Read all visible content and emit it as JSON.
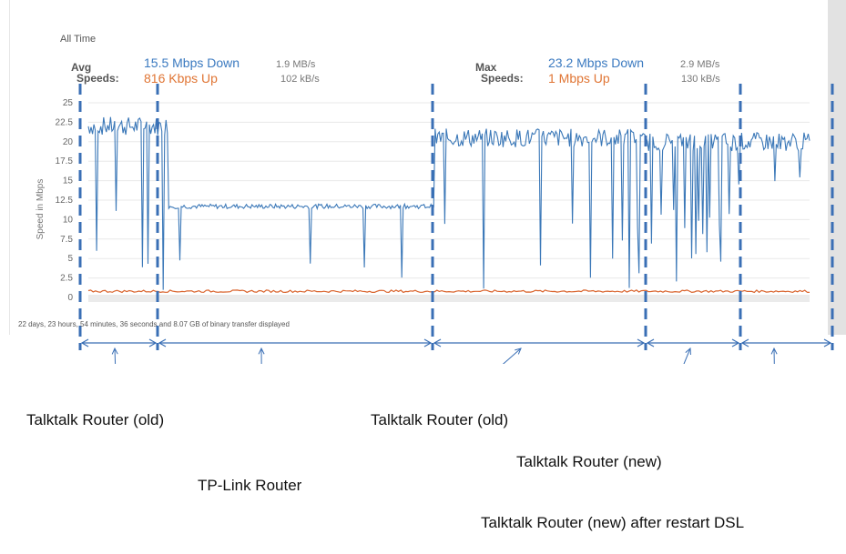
{
  "header": {
    "period": "All Time",
    "avg": {
      "label_line1": "Avg",
      "label_line2": "Speeds:",
      "down": "15.5 Mbps Down",
      "up": "816 Kbps Up",
      "down_bytes": "1.9 MB/s",
      "up_bytes": "102 kB/s"
    },
    "max": {
      "label_line1": "Max",
      "label_line2": "Speeds:",
      "down": "23.2 Mbps Down",
      "up": "1 Mbps Up",
      "down_bytes": "2.9 MB/s",
      "up_bytes": "130 kB/s"
    }
  },
  "footer": "22 days, 23 hours, 54 minutes, 36 seconds and 8.07 GB of binary transfer displayed",
  "annotations": [
    {
      "label": "Talktalk Router (old)",
      "segment": 1
    },
    {
      "label": "TP-Link Router",
      "segment": 2
    },
    {
      "label": "Talktalk Router (old)",
      "segment": 3
    },
    {
      "label": "Talktalk Router (new)",
      "segment": 4
    },
    {
      "label": "Talktalk Router (new) after restart DSL",
      "segment": 5
    }
  ],
  "colors": {
    "download": "#3b78b8",
    "upload": "#d9622b",
    "divider": "#3a6fb5",
    "grid": "#e8e8e8"
  },
  "chart_data": {
    "type": "line",
    "title": "All Time",
    "xlabel": "",
    "ylabel": "Speed in Mbps",
    "ylim": [
      0,
      25
    ],
    "yticks": [
      "0",
      "2.5",
      "5",
      "7.5",
      "10",
      "12.5",
      "15",
      "17.5",
      "20",
      "22.5",
      "25"
    ],
    "grid": true,
    "legend": "none",
    "segments": [
      {
        "name": "Talktalk Router (old)",
        "x_range": [
          0,
          0.11
        ],
        "download_typical": 22,
        "note": "frequent drops to ~0"
      },
      {
        "name": "TP-Link Router",
        "x_range": [
          0.11,
          0.48
        ],
        "download_typical": 11.7,
        "note": "stable, occasional dips to ~2.5-5.5"
      },
      {
        "name": "Talktalk Router (old)",
        "x_range": [
          0.48,
          0.76
        ],
        "download_typical": 20.5,
        "note": "frequent deep dips"
      },
      {
        "name": "Talktalk Router (new)",
        "x_range": [
          0.76,
          0.89
        ],
        "download_typical": 20,
        "note": "many drops to ~0"
      },
      {
        "name": "Talktalk Router (new) after restart DSL",
        "x_range": [
          0.89,
          1.0
        ],
        "download_typical": 20,
        "note": "mostly stable, dips to ~13.5"
      }
    ],
    "series": [
      {
        "name": "Download (Mbps)",
        "avg": 15.5,
        "max": 23.2,
        "x": [
          0,
          0.02,
          0.04,
          0.05,
          0.06,
          0.07,
          0.08,
          0.09,
          0.1,
          0.11,
          0.15,
          0.2,
          0.25,
          0.3,
          0.35,
          0.4,
          0.45,
          0.48,
          0.52,
          0.56,
          0.6,
          0.64,
          0.68,
          0.72,
          0.76,
          0.79,
          0.82,
          0.85,
          0.88,
          0.91,
          0.94,
          0.97,
          1.0
        ],
        "values": [
          23,
          22,
          21.5,
          0.3,
          22,
          0.5,
          21,
          0.3,
          20.5,
          11.5,
          11.8,
          11.5,
          11.7,
          11.6,
          11.5,
          11.8,
          11.6,
          12,
          21,
          20.5,
          20,
          5,
          21,
          20.5,
          20,
          19,
          3,
          19,
          20,
          20,
          19.5,
          20,
          20.8
        ]
      },
      {
        "name": "Upload (Mbps)",
        "avg": 0.816,
        "max": 1.0,
        "x": [
          0,
          0.25,
          0.5,
          0.75,
          1.0
        ],
        "values": [
          0.8,
          0.8,
          0.8,
          0.8,
          0.8
        ]
      }
    ]
  }
}
